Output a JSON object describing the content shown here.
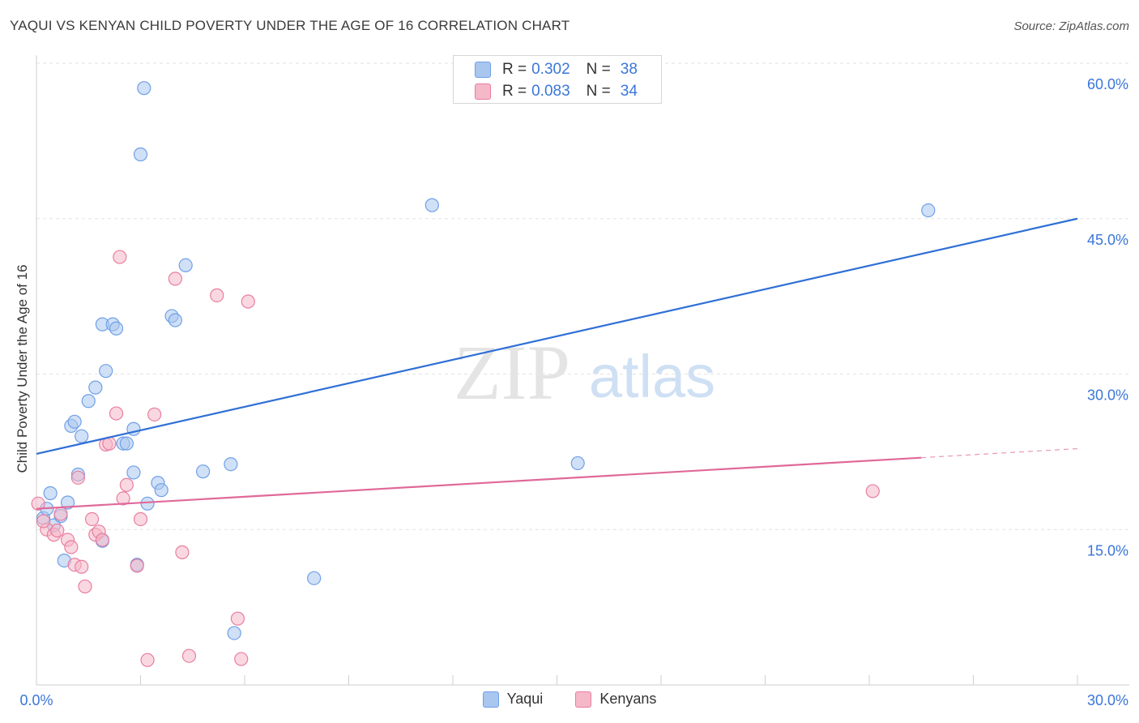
{
  "header": {
    "title": "YAQUI VS KENYAN CHILD POVERTY UNDER THE AGE OF 16 CORRELATION CHART",
    "source": "Source: ZipAtlas.com"
  },
  "watermark": {
    "zip": "ZIP",
    "atlas": "atlas"
  },
  "stats": {
    "rows": [
      {
        "r_label": "R = ",
        "r_value": "0.302",
        "n_label": "N = ",
        "n_value": "38",
        "color": "#a9c6ef"
      },
      {
        "r_label": "R = ",
        "r_value": "0.083",
        "n_label": "N = ",
        "n_value": "34",
        "color": "#f5b8c9"
      }
    ]
  },
  "chart_data": {
    "type": "scatter",
    "title": "YAQUI VS KENYAN CHILD POVERTY UNDER THE AGE OF 16 CORRELATION CHART",
    "xlabel": "",
    "ylabel": "Child Poverty Under the Age of 16",
    "xlim": [
      0,
      30
    ],
    "ylim": [
      0,
      60
    ],
    "x_tick_labels": [
      "0.0%",
      "30.0%"
    ],
    "y_ticks": [
      15,
      30,
      45,
      60
    ],
    "y_tick_labels": [
      "15.0%",
      "30.0%",
      "45.0%",
      "60.0%"
    ],
    "grid": true,
    "legend_position": "bottom",
    "series": [
      {
        "name": "Yaqui",
        "color": "#6fa0e8",
        "fill": "#a9c6ef",
        "trend": {
          "x0": 0,
          "y0": 22.3,
          "x1": 30,
          "y1": 45.0,
          "solid_until": 30
        },
        "points": [
          [
            0.2,
            16.1
          ],
          [
            0.5,
            15.4
          ],
          [
            0.4,
            18.5
          ],
          [
            0.7,
            16.3
          ],
          [
            0.8,
            12.0
          ],
          [
            0.9,
            17.6
          ],
          [
            1.0,
            25.0
          ],
          [
            1.1,
            25.4
          ],
          [
            1.3,
            24.0
          ],
          [
            1.5,
            27.4
          ],
          [
            1.7,
            28.7
          ],
          [
            1.9,
            34.8
          ],
          [
            2.0,
            30.3
          ],
          [
            2.2,
            34.8
          ],
          [
            2.3,
            34.4
          ],
          [
            2.5,
            23.3
          ],
          [
            2.6,
            23.3
          ],
          [
            2.8,
            20.5
          ],
          [
            2.9,
            11.6
          ],
          [
            3.0,
            51.2
          ],
          [
            3.1,
            57.6
          ],
          [
            3.2,
            17.5
          ],
          [
            3.5,
            19.5
          ],
          [
            3.6,
            18.8
          ],
          [
            3.9,
            35.6
          ],
          [
            4.0,
            35.2
          ],
          [
            4.3,
            40.5
          ],
          [
            4.8,
            20.6
          ],
          [
            5.6,
            21.3
          ],
          [
            5.7,
            5.0
          ],
          [
            2.8,
            24.7
          ],
          [
            8.0,
            10.3
          ],
          [
            11.4,
            46.3
          ],
          [
            15.6,
            21.4
          ],
          [
            25.7,
            45.8
          ],
          [
            0.3,
            17.0
          ],
          [
            1.2,
            20.3
          ],
          [
            1.9,
            13.9
          ]
        ]
      },
      {
        "name": "Kenyans",
        "color": "#e87ea0",
        "fill": "#f5b8c9",
        "trend": {
          "x0": 0,
          "y0": 17.0,
          "x1": 30,
          "y1": 22.8,
          "solid_until": 25.5
        },
        "points": [
          [
            0.05,
            17.5
          ],
          [
            0.3,
            15.0
          ],
          [
            0.5,
            14.5
          ],
          [
            0.6,
            14.9
          ],
          [
            0.7,
            16.5
          ],
          [
            0.9,
            14.0
          ],
          [
            1.0,
            13.3
          ],
          [
            1.1,
            11.6
          ],
          [
            1.2,
            20.0
          ],
          [
            1.3,
            11.4
          ],
          [
            1.4,
            9.5
          ],
          [
            1.6,
            16.0
          ],
          [
            1.7,
            14.5
          ],
          [
            1.8,
            14.8
          ],
          [
            1.9,
            14.0
          ],
          [
            2.0,
            23.2
          ],
          [
            2.1,
            23.3
          ],
          [
            2.3,
            26.2
          ],
          [
            2.4,
            41.3
          ],
          [
            2.5,
            18.0
          ],
          [
            2.6,
            19.3
          ],
          [
            2.9,
            11.5
          ],
          [
            3.0,
            16.0
          ],
          [
            3.2,
            2.4
          ],
          [
            3.4,
            26.1
          ],
          [
            4.0,
            39.2
          ],
          [
            4.2,
            12.8
          ],
          [
            4.4,
            2.8
          ],
          [
            5.2,
            37.6
          ],
          [
            5.8,
            6.4
          ],
          [
            5.9,
            2.5
          ],
          [
            6.1,
            37.0
          ],
          [
            24.1,
            18.7
          ],
          [
            0.2,
            15.8
          ]
        ]
      }
    ]
  }
}
